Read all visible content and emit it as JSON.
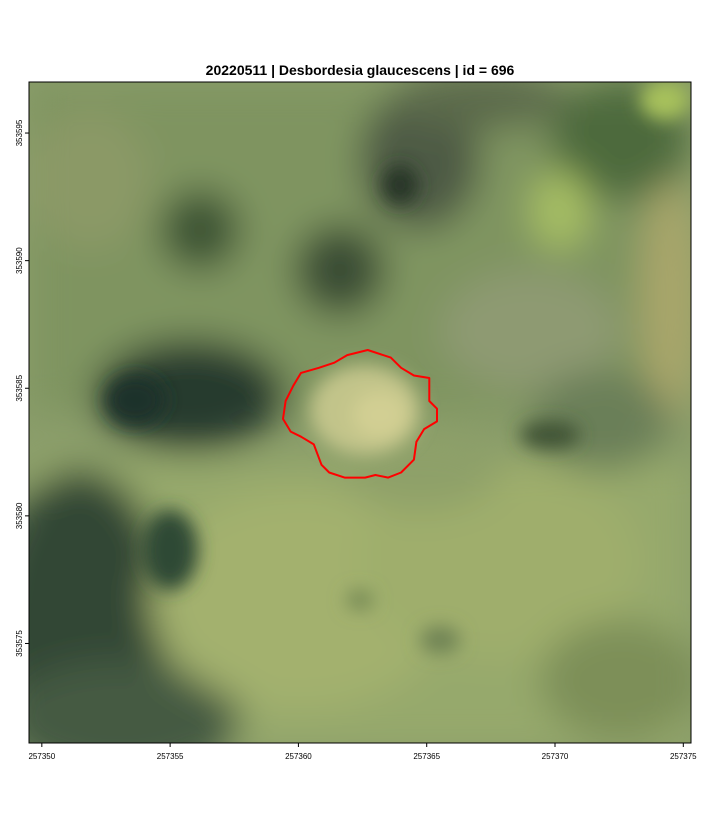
{
  "map": {
    "title": "20220511 | Desbordesia glaucescens | id = 696",
    "x_ticks": [
      {
        "value": 257350,
        "label": "257350"
      },
      {
        "value": 257355,
        "label": "257355"
      },
      {
        "value": 257360,
        "label": "257360"
      },
      {
        "value": 257365,
        "label": "257365"
      },
      {
        "value": 257370,
        "label": "257370"
      },
      {
        "value": 257375,
        "label": "257375"
      }
    ],
    "y_ticks": [
      {
        "value": 353595,
        "label": "353595"
      },
      {
        "value": 353590,
        "label": "353590"
      },
      {
        "value": 353585,
        "label": "353585"
      },
      {
        "value": 353580,
        "label": "353580"
      },
      {
        "value": 353575,
        "label": "353575"
      }
    ],
    "x_range": [
      257349.5,
      257375.3
    ],
    "y_range": [
      353597.0,
      353571.1
    ],
    "polygon_color": "#ff0000",
    "polygon": [
      [
        257360.1,
        353585.6
      ],
      [
        257360.8,
        353585.8
      ],
      [
        257361.4,
        353586.0
      ],
      [
        257361.9,
        353586.3
      ],
      [
        257362.7,
        353586.5
      ],
      [
        257363.6,
        353586.2
      ],
      [
        257364.0,
        353585.8
      ],
      [
        257364.5,
        353585.5
      ],
      [
        257365.1,
        353585.4
      ],
      [
        257365.1,
        353584.5
      ],
      [
        257365.4,
        353584.2
      ],
      [
        257365.4,
        353583.7
      ],
      [
        257364.9,
        353583.4
      ],
      [
        257364.6,
        353582.9
      ],
      [
        257364.5,
        353582.2
      ],
      [
        257364.0,
        353581.7
      ],
      [
        257363.5,
        353581.5
      ],
      [
        257363.0,
        353581.6
      ],
      [
        257362.6,
        353581.5
      ],
      [
        257361.8,
        353581.5
      ],
      [
        257361.2,
        353581.7
      ],
      [
        257360.9,
        353582.0
      ],
      [
        257360.6,
        353582.8
      ],
      [
        257360.1,
        353583.1
      ],
      [
        257359.7,
        353583.3
      ],
      [
        257359.4,
        353583.8
      ],
      [
        257359.5,
        353584.5
      ],
      [
        257359.8,
        353585.1
      ],
      [
        257360.1,
        353585.6
      ]
    ]
  }
}
